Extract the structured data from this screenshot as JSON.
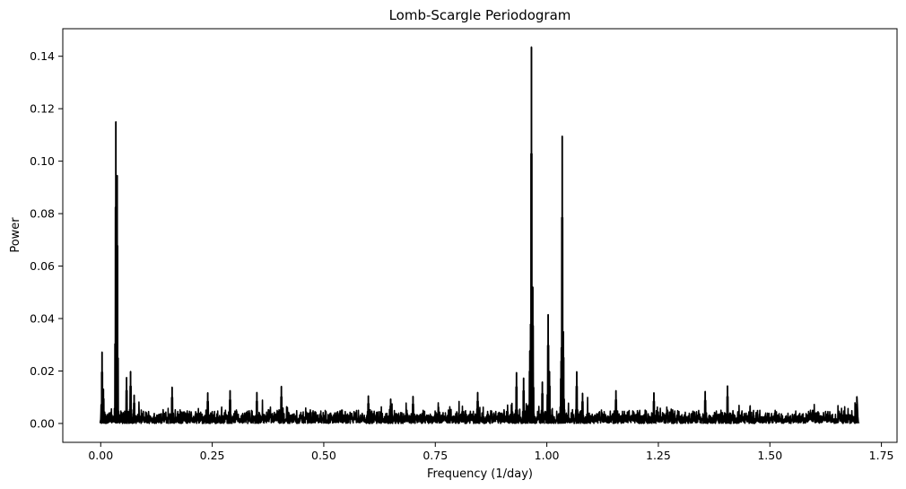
{
  "chart_data": {
    "type": "line",
    "title": "Lomb-Scargle Periodogram",
    "xlabel": "Frequency (1/day)",
    "ylabel": "Power",
    "xlim": [
      -0.085,
      1.785
    ],
    "ylim": [
      -0.0072,
      0.1505
    ],
    "grid": false,
    "legend": "none",
    "line_color": "#000000",
    "x_ticks": [
      {
        "value": 0.0,
        "label": "0.00"
      },
      {
        "value": 0.25,
        "label": "0.25"
      },
      {
        "value": 0.5,
        "label": "0.50"
      },
      {
        "value": 0.75,
        "label": "0.75"
      },
      {
        "value": 1.0,
        "label": "1.00"
      },
      {
        "value": 1.25,
        "label": "1.25"
      },
      {
        "value": 1.5,
        "label": "1.50"
      },
      {
        "value": 1.75,
        "label": "1.75"
      }
    ],
    "y_ticks": [
      {
        "value": 0.0,
        "label": "0.00"
      },
      {
        "value": 0.02,
        "label": "0.02"
      },
      {
        "value": 0.04,
        "label": "0.04"
      },
      {
        "value": 0.06,
        "label": "0.06"
      },
      {
        "value": 0.08,
        "label": "0.08"
      },
      {
        "value": 0.1,
        "label": "0.10"
      },
      {
        "value": 0.12,
        "label": "0.12"
      },
      {
        "value": 0.14,
        "label": "0.14"
      }
    ],
    "series": [
      {
        "frequency_range": [
          0.0,
          1.695
        ],
        "baseline_noise_level": 0.004,
        "peaks": [
          {
            "x": 0.003,
            "y": 0.0272
          },
          {
            "x": 0.006,
            "y": 0.0131
          },
          {
            "x": 0.034,
            "y": 0.115
          },
          {
            "x": 0.037,
            "y": 0.0945
          },
          {
            "x": 0.058,
            "y": 0.0175
          },
          {
            "x": 0.067,
            "y": 0.0198
          },
          {
            "x": 0.075,
            "y": 0.0108
          },
          {
            "x": 0.16,
            "y": 0.0138
          },
          {
            "x": 0.24,
            "y": 0.0117
          },
          {
            "x": 0.29,
            "y": 0.0125
          },
          {
            "x": 0.35,
            "y": 0.0118
          },
          {
            "x": 0.405,
            "y": 0.0141
          },
          {
            "x": 0.6,
            "y": 0.0105
          },
          {
            "x": 0.65,
            "y": 0.0093
          },
          {
            "x": 0.7,
            "y": 0.0103
          },
          {
            "x": 0.845,
            "y": 0.0118
          },
          {
            "x": 0.932,
            "y": 0.0194
          },
          {
            "x": 0.948,
            "y": 0.0173
          },
          {
            "x": 0.962,
            "y": 0.0277
          },
          {
            "x": 0.9655,
            "y": 0.1435
          },
          {
            "x": 0.9685,
            "y": 0.052
          },
          {
            "x": 0.99,
            "y": 0.0158
          },
          {
            "x": 1.003,
            "y": 0.0415
          },
          {
            "x": 1.006,
            "y": 0.0198
          },
          {
            "x": 1.032,
            "y": 0.0238
          },
          {
            "x": 1.0345,
            "y": 0.1095
          },
          {
            "x": 1.037,
            "y": 0.035
          },
          {
            "x": 1.067,
            "y": 0.0197
          },
          {
            "x": 1.08,
            "y": 0.0115
          },
          {
            "x": 1.155,
            "y": 0.0125
          },
          {
            "x": 1.24,
            "y": 0.0117
          },
          {
            "x": 1.355,
            "y": 0.0122
          },
          {
            "x": 1.405,
            "y": 0.0143
          },
          {
            "x": 1.695,
            "y": 0.0102
          }
        ]
      }
    ]
  }
}
